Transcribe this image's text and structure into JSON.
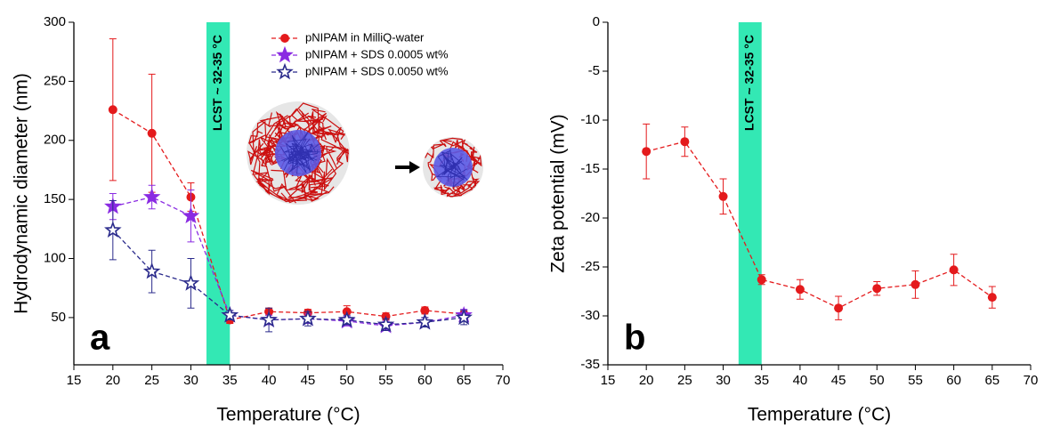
{
  "chart_data": [
    {
      "type": "line",
      "xlabel": "Temperature (°C)",
      "ylabel": "Hydrodynamic diameter (nm)",
      "panel_label": "a",
      "xlim": [
        15,
        70
      ],
      "xticks": [
        15,
        20,
        25,
        30,
        35,
        40,
        45,
        50,
        55,
        60,
        65,
        70
      ],
      "ylim": [
        10,
        300
      ],
      "yticks": [
        50,
        100,
        150,
        200,
        250,
        300
      ],
      "band": {
        "range": [
          32,
          35
        ],
        "label": "LCST ~ 32-35 °C",
        "color": "#33e8b4"
      },
      "legend": "upper right",
      "x": [
        20,
        25,
        30,
        35,
        40,
        45,
        50,
        55,
        60,
        65
      ],
      "series": [
        {
          "name": "pNIPAM in MilliQ-water",
          "color": "#e41a1c",
          "marker": "circle",
          "values": [
            226,
            206,
            152,
            48,
            55,
            54,
            55,
            51,
            56,
            53
          ],
          "errors": [
            60,
            50,
            12,
            3,
            3,
            3,
            5,
            3,
            3,
            3
          ]
        },
        {
          "name": "pNIPAM + SDS 0.0005 wt%",
          "color": "#8a2be2",
          "marker": "star",
          "values": [
            144,
            152,
            136,
            52,
            48,
            49,
            47,
            43,
            46,
            52
          ],
          "errors": [
            11,
            10,
            22,
            4,
            4,
            4,
            4,
            4,
            4,
            5
          ]
        },
        {
          "name": "pNIPAM + SDS 0.0050 wt%",
          "color": "#2b2b8c",
          "marker": "star-open",
          "values": [
            124,
            89,
            79,
            52,
            48,
            49,
            48,
            44,
            46,
            50
          ],
          "errors": [
            25,
            18,
            21,
            4,
            10,
            6,
            4,
            5,
            4,
            6
          ]
        }
      ]
    },
    {
      "type": "line",
      "xlabel": "Temperature (°C)",
      "ylabel": "Zeta potential (mV)",
      "panel_label": "b",
      "xlim": [
        15,
        70
      ],
      "xticks": [
        15,
        20,
        25,
        30,
        35,
        40,
        45,
        50,
        55,
        60,
        65,
        70
      ],
      "ylim": [
        -35,
        0
      ],
      "yticks": [
        -35,
        -30,
        -25,
        -20,
        -15,
        -10,
        -5,
        0
      ],
      "band": {
        "range": [
          32,
          35
        ],
        "label": "LCST ~ 32-35 °C",
        "color": "#33e8b4"
      },
      "x": [
        20,
        25,
        30,
        35,
        40,
        45,
        50,
        55,
        60,
        65
      ],
      "series": [
        {
          "color": "#e41a1c",
          "marker": "circle",
          "values": [
            -13.2,
            -12.2,
            -17.8,
            -26.3,
            -27.3,
            -29.2,
            -27.2,
            -26.8,
            -25.3,
            -28.1
          ],
          "errors": [
            2.8,
            1.5,
            1.8,
            0.5,
            1.0,
            1.2,
            0.7,
            1.4,
            1.6,
            1.1
          ]
        }
      ]
    }
  ]
}
